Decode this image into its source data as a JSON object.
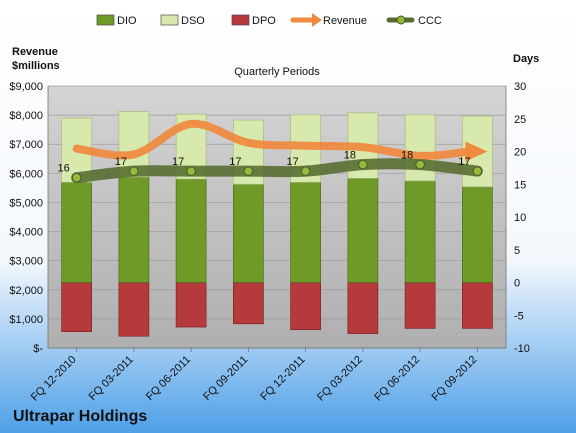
{
  "chart_data": {
    "type": "bar",
    "title": "Quarterly Periods",
    "company": "Ultrapar Holdings",
    "left_axis_label": [
      "Revenue",
      "$millions"
    ],
    "right_axis_label": "Days",
    "categories": [
      "FQ 12-2010",
      "FQ 03-2011",
      "FQ 06-2011",
      "FQ 09-2011",
      "FQ 12-2011",
      "FQ 03-2012",
      "FQ 06-2012",
      "FQ 09-2012"
    ],
    "left_ticks": [
      "$-",
      "$1,000",
      "$2,000",
      "$3,000",
      "$4,000",
      "$5,000",
      "$6,000",
      "$7,000",
      "$8,000",
      "$9,000"
    ],
    "left_range": [
      0,
      9000
    ],
    "right_ticks": [
      "-10",
      "-5",
      "0",
      "5",
      "10",
      "15",
      "20",
      "25",
      "30"
    ],
    "right_range": [
      -10,
      30
    ],
    "legend_position": "top",
    "legend": [
      {
        "key": "dio",
        "label": "DIO",
        "kind": "bar"
      },
      {
        "key": "dso",
        "label": "DSO",
        "kind": "bar"
      },
      {
        "key": "dpo",
        "label": "DPO",
        "kind": "bar"
      },
      {
        "key": "revenue",
        "label": "Revenue",
        "kind": "arrow"
      },
      {
        "key": "ccc",
        "label": "CCC",
        "kind": "marker-line"
      }
    ],
    "series": [
      {
        "name": "DIO",
        "axis": "right",
        "values": [
          15.3,
          16.1,
          15.8,
          15.0,
          15.3,
          15.9,
          15.5,
          14.6
        ]
      },
      {
        "name": "DSO",
        "axis": "right",
        "values": [
          9.8,
          10.0,
          9.9,
          9.8,
          10.3,
          10.0,
          10.1,
          10.8
        ]
      },
      {
        "name": "DPO",
        "axis": "right",
        "values": [
          -7.5,
          -8.2,
          -6.8,
          -6.3,
          -7.2,
          -7.8,
          -7.0,
          -7.0
        ]
      },
      {
        "name": "Revenue",
        "axis": "left",
        "values": [
          6850,
          6650,
          7700,
          7050,
          6950,
          6900,
          6600,
          6750
        ]
      },
      {
        "name": "CCC",
        "axis": "right",
        "values": [
          16,
          17,
          17,
          17,
          17,
          18,
          18,
          17
        ]
      }
    ],
    "grid": true,
    "colors": {
      "dio": "#6f9a28",
      "dso": "#d8e9ad",
      "dpo": "#b63a3c",
      "revenue": "#ef8a3e",
      "ccc": "#556b2f",
      "plot_background": "#bebebe",
      "background_top": "#ffffff",
      "background_bottom": "#4ea0e8"
    }
  }
}
